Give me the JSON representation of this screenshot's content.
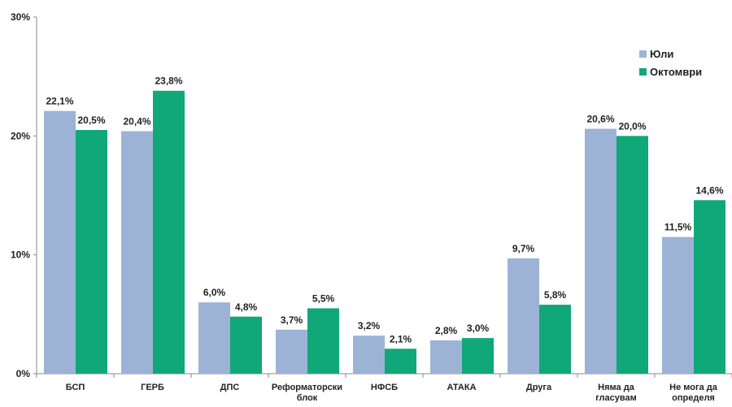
{
  "chart_data": {
    "type": "bar",
    "categories": [
      [
        "БСП"
      ],
      [
        "ГЕРБ"
      ],
      [
        "ДПС"
      ],
      [
        "Реформаторски",
        "блок"
      ],
      [
        "НФСБ"
      ],
      [
        "АТАКА"
      ],
      [
        "Друга"
      ],
      [
        "Няма да",
        "гласувам"
      ],
      [
        "Не мога да",
        "определя"
      ]
    ],
    "series": [
      {
        "name": "Юли",
        "color": "#9db3d6",
        "values": [
          22.1,
          20.4,
          6.0,
          3.7,
          3.2,
          2.8,
          9.7,
          20.6,
          11.5
        ],
        "labels": [
          "22,1%",
          "20,4%",
          "6,0%",
          "3,7%",
          "3,2%",
          "2,8%",
          "9,7%",
          "20,6%",
          "11,5%"
        ]
      },
      {
        "name": "Октомври",
        "color": "#10a779",
        "values": [
          20.5,
          23.8,
          4.8,
          5.5,
          2.1,
          3.0,
          5.8,
          20.0,
          14.6
        ],
        "labels": [
          "20,5%",
          "23,8%",
          "4,8%",
          "5,5%",
          "2,1%",
          "3,0%",
          "5,8%",
          "20,0%",
          "14,6%"
        ]
      }
    ],
    "ylim": [
      0,
      30
    ],
    "yticks": [
      0,
      10,
      20,
      30
    ],
    "ytick_labels": [
      "0%",
      "10%",
      "20%",
      "30%"
    ],
    "legend_position": "top-right",
    "grid": false
  }
}
